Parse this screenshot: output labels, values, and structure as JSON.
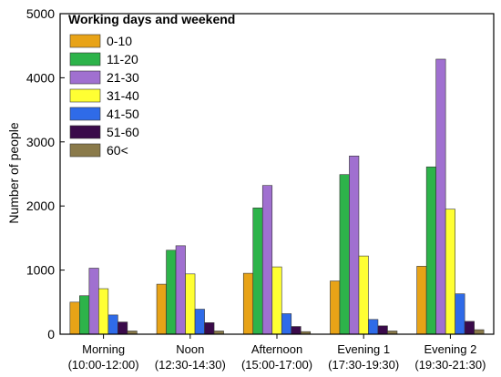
{
  "chart_data": {
    "type": "bar",
    "title": "",
    "ylabel": "Number of people",
    "xlabel": "",
    "ylim": [
      0,
      5000
    ],
    "yticks": [
      0,
      1000,
      2000,
      3000,
      4000,
      5000
    ],
    "categories": [
      [
        "Morning",
        "(10:00-12:00)"
      ],
      [
        "Noon",
        "(12:30-14:30)"
      ],
      [
        "Afternoon",
        "(15:00-17:00)"
      ],
      [
        "Evening 1",
        "(17:30-19:30)"
      ],
      [
        "Evening 2",
        "(19:30-21:30)"
      ]
    ],
    "legend": {
      "title": "Working days and weekend",
      "placement": "top-left"
    },
    "series": [
      {
        "name": "0-10",
        "color": "#E8A317",
        "values": [
          500,
          780,
          950,
          830,
          1060
        ]
      },
      {
        "name": "11-20",
        "color": "#2DB34A",
        "values": [
          600,
          1310,
          1970,
          2490,
          2610
        ]
      },
      {
        "name": "21-30",
        "color": "#A070D0",
        "values": [
          1030,
          1380,
          2320,
          2780,
          4290
        ]
      },
      {
        "name": "31-40",
        "color": "#FFFF33",
        "values": [
          710,
          940,
          1050,
          1220,
          1950
        ]
      },
      {
        "name": "41-50",
        "color": "#2F6BE8",
        "values": [
          300,
          390,
          320,
          230,
          630
        ]
      },
      {
        "name": "51-60",
        "color": "#3A0A4A",
        "values": [
          190,
          180,
          120,
          130,
          200
        ]
      },
      {
        "name": "60<",
        "color": "#8A7A4A",
        "values": [
          50,
          50,
          40,
          50,
          70
        ]
      }
    ]
  }
}
